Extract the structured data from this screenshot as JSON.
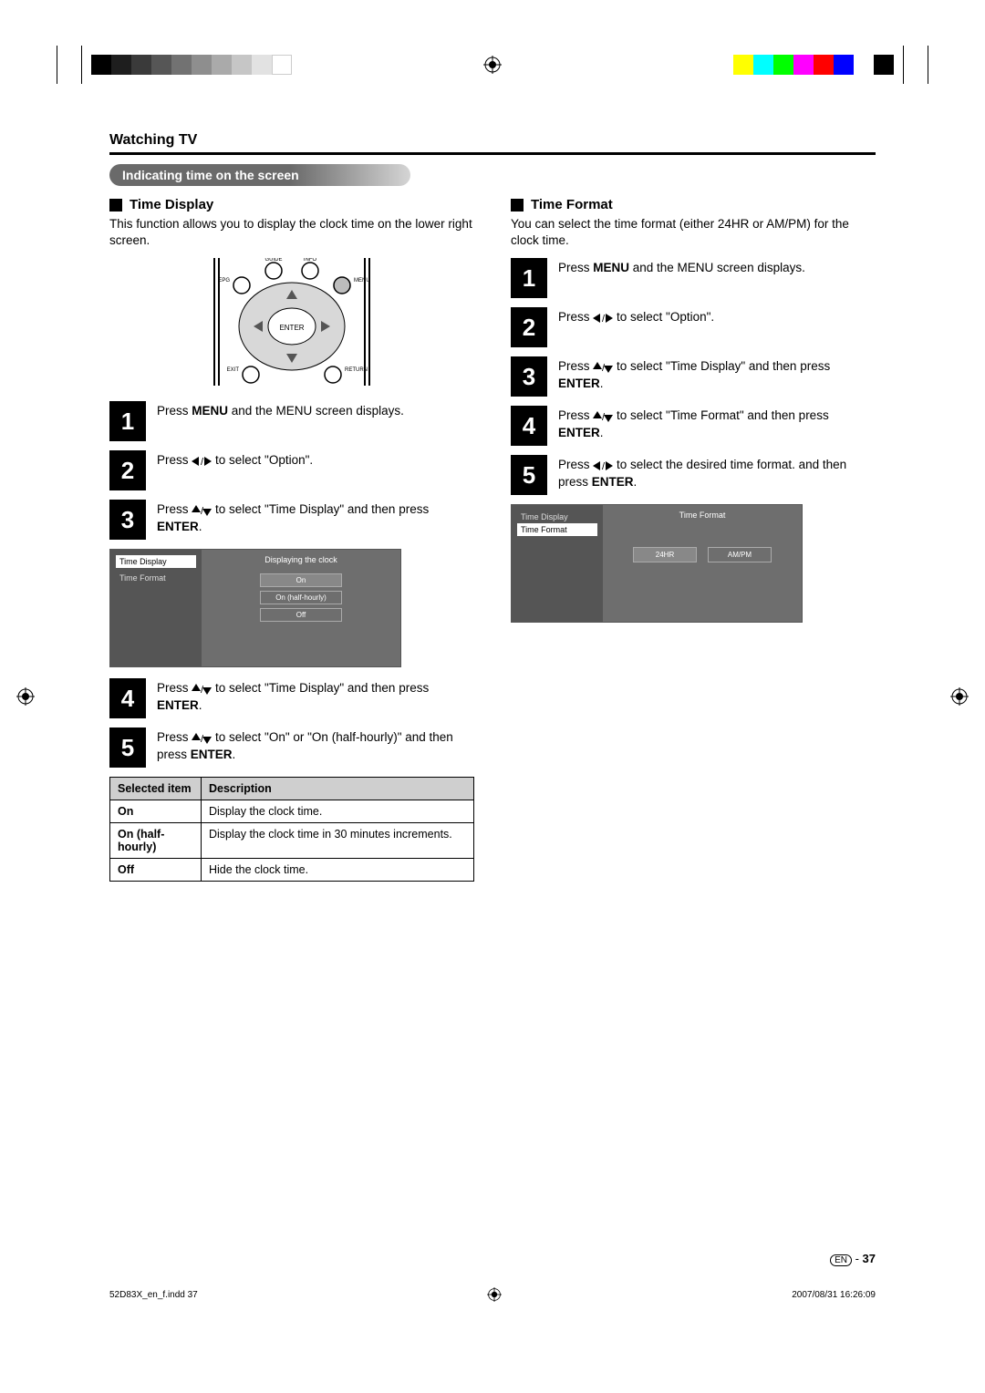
{
  "crop": {
    "grayscale_bars": [
      "#000000",
      "#1e1e1e",
      "#3a3a3a",
      "#565656",
      "#727272",
      "#8e8e8e",
      "#aaaaaa",
      "#c6c6c6",
      "#e2e2e2",
      "#ffffff"
    ],
    "color_bars": [
      "#ffff00",
      "#00ffff",
      "#00ff00",
      "#ff00ff",
      "#ff0000",
      "#0000ff",
      "#ffffff",
      "#000000"
    ]
  },
  "page": {
    "section": "Watching TV",
    "subsection": "Indicating time on the screen",
    "page_number": "37",
    "page_lang": "EN",
    "footer_left": "52D83X_en_f.indd   37",
    "footer_right": "2007/08/31   16:26:09"
  },
  "left": {
    "heading": "Time Display",
    "intro": "This function allows you to display the clock time on the lower right screen.",
    "remote_labels": {
      "guide": "GUIDE",
      "info": "INFO",
      "epg": "EPG",
      "menu": "MENU",
      "enter": "ENTER",
      "exit": "EXIT",
      "return": "RETURN"
    },
    "steps": [
      {
        "n": "1",
        "parts": [
          "Press ",
          {
            "b": "MENU"
          },
          " and the MENU screen displays."
        ]
      },
      {
        "n": "2",
        "parts": [
          "Press ",
          {
            "sym": "lr"
          },
          " to select \"Option\"."
        ]
      },
      {
        "n": "3",
        "parts": [
          "Press ",
          {
            "sym": "ud"
          },
          " to select \"Time Display\" and then press ",
          {
            "b": "ENTER"
          },
          "."
        ]
      },
      {
        "n": "4",
        "parts": [
          "Press ",
          {
            "sym": "ud"
          },
          " to select \"Time Display\" and then press ",
          {
            "b": "ENTER"
          },
          "."
        ]
      },
      {
        "n": "5",
        "parts": [
          "Press ",
          {
            "sym": "ud"
          },
          " to select \"On\" or \"On (half-hourly)\" and then press ",
          {
            "b": "ENTER"
          },
          "."
        ]
      }
    ],
    "osd": {
      "left_items": [
        "Time Display",
        "Time Format"
      ],
      "left_selected": 0,
      "right_title": "Displaying the clock",
      "options": [
        "On",
        "On (half-hourly)",
        "Off"
      ],
      "option_selected": 0
    },
    "table": {
      "headers": [
        "Selected item",
        "Description"
      ],
      "rows": [
        [
          "On",
          "Display the clock time."
        ],
        [
          "On (half-hourly)",
          "Display the clock time in 30 minutes increments."
        ],
        [
          "Off",
          "Hide the clock time."
        ]
      ]
    }
  },
  "right": {
    "heading": "Time Format",
    "intro": "You can select the time format (either 24HR or AM/PM) for the clock time.",
    "steps": [
      {
        "n": "1",
        "parts": [
          "Press ",
          {
            "b": "MENU"
          },
          " and the MENU screen displays."
        ]
      },
      {
        "n": "2",
        "parts": [
          "Press ",
          {
            "sym": "lr"
          },
          " to select \"Option\"."
        ]
      },
      {
        "n": "3",
        "parts": [
          "Press ",
          {
            "sym": "ud"
          },
          " to select \"Time Display\" and then press ",
          {
            "b": "ENTER"
          },
          "."
        ]
      },
      {
        "n": "4",
        "parts": [
          "Press ",
          {
            "sym": "ud"
          },
          " to select \"Time Format\" and then press ",
          {
            "b": "ENTER"
          },
          "."
        ]
      },
      {
        "n": "5",
        "parts": [
          "Press ",
          {
            "sym": "lr"
          },
          " to select the desired time format. and then press ",
          {
            "b": "ENTER"
          },
          "."
        ]
      }
    ],
    "osd": {
      "left_items": [
        "Time Display",
        "Time Format"
      ],
      "left_selected": 1,
      "right_title": "Time Format",
      "buttons": [
        "24HR",
        "AM/PM"
      ],
      "button_selected": 0
    }
  }
}
